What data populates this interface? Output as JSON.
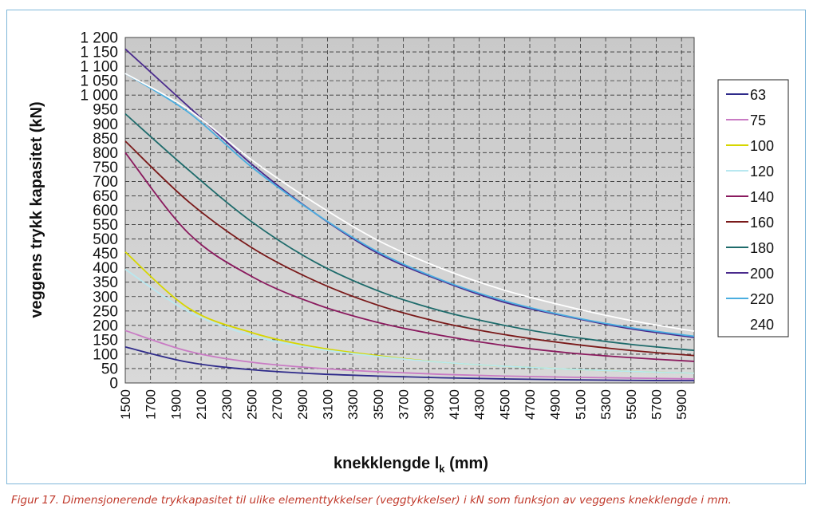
{
  "chart_data": {
    "type": "line",
    "xlabel_main": "knekklengde l",
    "xlabel_sub": "k",
    "xlabel_unit": " (mm)",
    "ylabel": "veggens trykk kapasitet (kN)",
    "xlim": [
      1500,
      6000
    ],
    "ylim": [
      0,
      1200
    ],
    "x_ticks": [
      1500,
      1700,
      1900,
      2100,
      2300,
      2500,
      2700,
      2900,
      3100,
      3300,
      3500,
      3700,
      3900,
      4100,
      4300,
      4500,
      4700,
      4900,
      5100,
      5300,
      5500,
      5700,
      5900
    ],
    "y_ticks": [
      0,
      50,
      100,
      150,
      200,
      250,
      300,
      350,
      400,
      450,
      500,
      550,
      600,
      650,
      700,
      750,
      800,
      850,
      900,
      950,
      1000,
      1050,
      1100,
      1150,
      1200
    ],
    "y_tick_labels": [
      "0",
      "50",
      "100",
      "150",
      "200",
      "250",
      "300",
      "350",
      "400",
      "450",
      "500",
      "550",
      "600",
      "650",
      "700",
      "750",
      "800",
      "850",
      "900",
      "950",
      "1 000",
      "1 050",
      "1 100",
      "1 150",
      "1 200"
    ],
    "grid": true,
    "legend_position": "right",
    "x": [
      1500,
      2000,
      2500,
      3000,
      3500,
      4000,
      4500,
      5000,
      5500,
      6000
    ],
    "series": [
      {
        "name": "63",
        "color": "#2e2a8a",
        "values": [
          125,
          72,
          46,
          32,
          24,
          18,
          14,
          11,
          9,
          8
        ]
      },
      {
        "name": "75",
        "color": "#c97bc4",
        "values": [
          182,
          110,
          72,
          52,
          39,
          30,
          24,
          20,
          17,
          14
        ]
      },
      {
        "name": "100",
        "color": "#d6d600",
        "values": [
          455,
          260,
          175,
          125,
          95,
          72,
          58,
          48,
          40,
          34
        ]
      },
      {
        "name": "120",
        "color": "#b8e8f0",
        "values": [
          395,
          248,
          165,
          120,
          92,
          72,
          58,
          48,
          40,
          34
        ]
      },
      {
        "name": "140",
        "color": "#8a1a5e",
        "values": [
          800,
          520,
          370,
          275,
          210,
          165,
          130,
          105,
          88,
          75
        ]
      },
      {
        "name": "160",
        "color": "#7a1a1a",
        "values": [
          840,
          630,
          470,
          355,
          270,
          210,
          168,
          137,
          113,
          95
        ]
      },
      {
        "name": "180",
        "color": "#1e6b6b",
        "values": [
          935,
          740,
          560,
          420,
          320,
          250,
          200,
          162,
          134,
          113
        ]
      },
      {
        "name": "200",
        "color": "#4a2a8c",
        "values": [
          1160,
          960,
          760,
          590,
          450,
          355,
          280,
          230,
          188,
          158
        ]
      },
      {
        "name": "220",
        "color": "#4aaee0",
        "values": [
          1075,
          940,
          750,
          590,
          455,
          358,
          285,
          232,
          192,
          162
        ]
      },
      {
        "name": "240",
        "color": "#ffffff",
        "values": [
          1075,
          950,
          775,
          625,
          495,
          398,
          322,
          265,
          217,
          180
        ]
      }
    ]
  },
  "caption": "Figur 17. Dimensjonerende trykkapasitet til ulike elementtykkelser (veggtykkelser) i kN som funksjon av veggens knekklengde i mm."
}
